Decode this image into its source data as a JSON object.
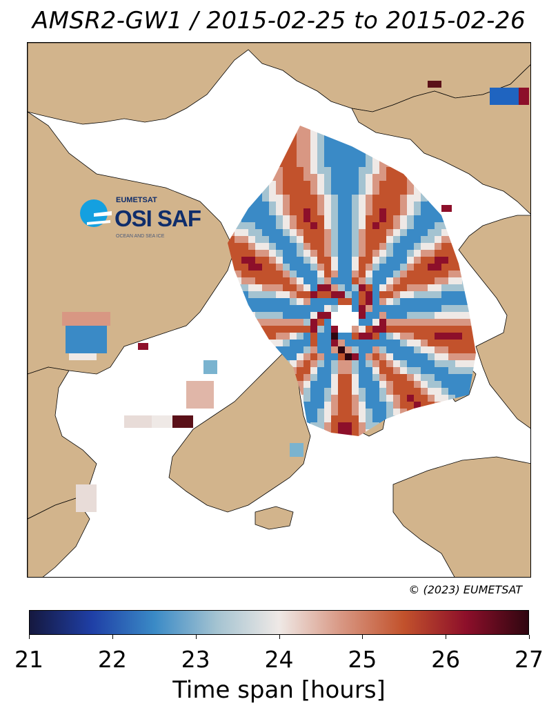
{
  "title": "AMSR2-GW1 / 2015-02-25 to 2015-02-26",
  "logo": {
    "org": "EUMETSAT",
    "brand": "OSI SAF",
    "tagline": "OCEAN AND SEA ICE"
  },
  "copyright": "© (2023) EUMETSAT",
  "colorbar": {
    "label": "Time span [hours]",
    "min": 21,
    "max": 27,
    "ticks": [
      "21",
      "22",
      "23",
      "24",
      "25",
      "26",
      "27"
    ],
    "colors": [
      "#15183f",
      "#1f3fa6",
      "#3a8ac6",
      "#a4c3d1",
      "#efe9e6",
      "#d89783",
      "#c2522c",
      "#8d0f2a",
      "#2f0610"
    ]
  },
  "map": {
    "land_color": "#d2b48c",
    "ocean_color": "#ffffff",
    "coastline_color": "#000000"
  }
}
